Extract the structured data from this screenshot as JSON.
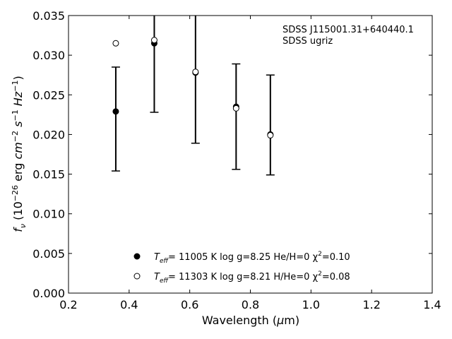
{
  "chart_data": {
    "type": "scatter",
    "annotation": [
      "SDSS J115001.31+640440.1",
      "SDSS ugriz"
    ],
    "xlabel": "Wavelength (μm)",
    "ylabel": "f_ν (10^−26 erg cm^−2 s^−1 Hz^−1)",
    "xlim": [
      0.2,
      1.4
    ],
    "ylim": [
      0.0,
      0.035
    ],
    "xticks": [
      "0.2",
      "0.4",
      "0.6",
      "0.8",
      "1.0",
      "1.2",
      "1.4"
    ],
    "yticks": [
      "0.000",
      "0.005",
      "0.010",
      "0.015",
      "0.020",
      "0.025",
      "0.030",
      "0.035"
    ],
    "observed": {
      "x": [
        0.356,
        0.483,
        0.619,
        0.753,
        0.866
      ],
      "y": [
        0.0229,
        0.0315,
        0.0278,
        0.0235,
        0.02
      ],
      "yerr_low": [
        0.0154,
        0.0228,
        0.0189,
        0.0156,
        0.0149
      ],
      "yerr_high": [
        0.0285,
        0.035,
        0.035,
        0.0289,
        0.0275
      ]
    },
    "series": [
      {
        "label": "T_eff= 11005 K  log g=8.25  He/H=0  χ²=0.10",
        "marker": "filled-circle",
        "x": [
          0.356,
          0.483,
          0.619,
          0.753,
          0.866
        ],
        "y": [
          0.0229,
          0.0315,
          0.0278,
          0.0235,
          0.02
        ]
      },
      {
        "label": "T_eff= 11303 K  log g=8.21  H/He=0  χ²=0.08",
        "marker": "open-circle",
        "x": [
          0.356,
          0.483,
          0.619,
          0.753,
          0.866
        ],
        "y": [
          0.0315,
          0.0319,
          0.0279,
          0.0233,
          0.0199
        ]
      }
    ],
    "legend": [
      {
        "marker": "filled-circle",
        "teff": "= 11005 K  log g=8.25  He/H=0  χ",
        "chi": "=0.10"
      },
      {
        "marker": "open-circle",
        "teff": "= 11303 K  log g=8.21  H/He=0  χ",
        "chi": "=0.08"
      }
    ],
    "legend_position": "bottom-center",
    "grid": false
  }
}
